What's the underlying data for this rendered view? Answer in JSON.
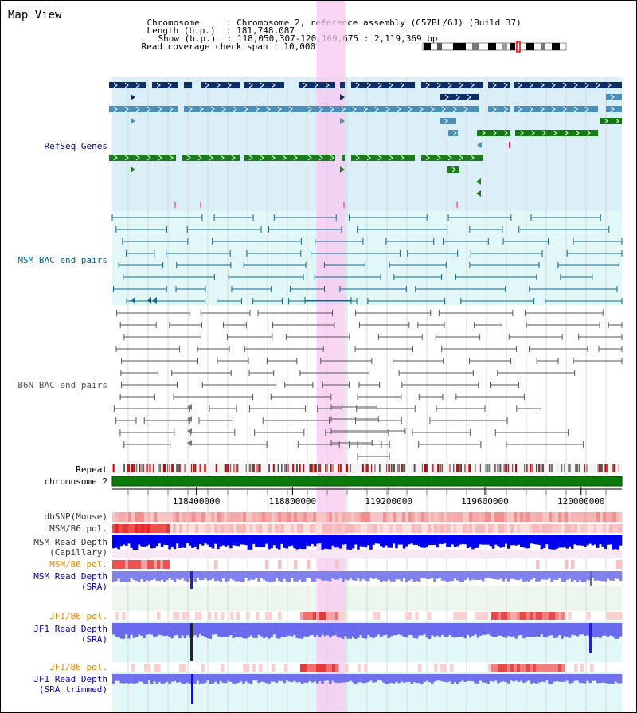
{
  "view": {
    "title": "Map View"
  },
  "header": {
    "chromosome_label": "Chromosome",
    "chromosome_value": "Chromosome 2, reference assembly (C57BL/6J) (Build 37)",
    "length_label": "Length (b.p.)",
    "length_value": "181,748,087",
    "show_label": "Show (b.p.)",
    "show_value": "118,050,307-120,169,675 : 2,119,369 bp",
    "coverage_label": "Read coverage check span",
    "coverage_value": "10,000"
  },
  "region": {
    "start": 118050307,
    "end": 120169675,
    "highlight_start": 118900000,
    "highlight_end": 119020000
  },
  "axis": {
    "ticks": [
      {
        "pos": 118400000,
        "label": "118400000"
      },
      {
        "pos": 118800000,
        "label": "118800000"
      },
      {
        "pos": 119200000,
        "label": "119200000"
      },
      {
        "pos": 119600000,
        "label": "119600000"
      },
      {
        "pos": 120000000,
        "label": "120000000"
      }
    ]
  },
  "tracks": {
    "refseq": {
      "label": "RefSeq Genes",
      "color": "#000099"
    },
    "msm_bac": {
      "label": "MSM BAC end pairs",
      "color": "#006688"
    },
    "b6n_bac": {
      "label": "B6N BAC end pairs",
      "color": "#555555"
    },
    "repeat": {
      "label": "Repeat",
      "color": "#000000"
    },
    "chromosome": {
      "label": "chromosome 2",
      "color": "#000000"
    },
    "dbsnp": {
      "label": "dbSNP(Mouse)",
      "color": "#333333"
    },
    "msm_b6_pol_1": {
      "label": "MSM/B6 pol.",
      "color": "#333333"
    },
    "msm_depth_cap": {
      "label": "MSM Read Depth\n(Capillary)",
      "color": "#333333"
    },
    "msm_b6_pol_2": {
      "label": "MSM/B6 pol.",
      "color": "#ee8800"
    },
    "msm_depth_sra": {
      "label": "MSM Read Depth\n(SRA)",
      "color": "#0000cc"
    },
    "jf1_b6_pol_1": {
      "label": "JF1/B6 pol.",
      "color": "#ee8800"
    },
    "jf1_depth_sra": {
      "label": "JF1 Read Depth\n(SRA)",
      "color": "#0000cc"
    },
    "jf1_b6_pol_2": {
      "label": "JF1/B6 pol.",
      "color": "#ee8800"
    },
    "jf1_depth_trim": {
      "label": "JF1 Read Depth\n(SRA trimmed)",
      "color": "#0000cc"
    }
  }
}
